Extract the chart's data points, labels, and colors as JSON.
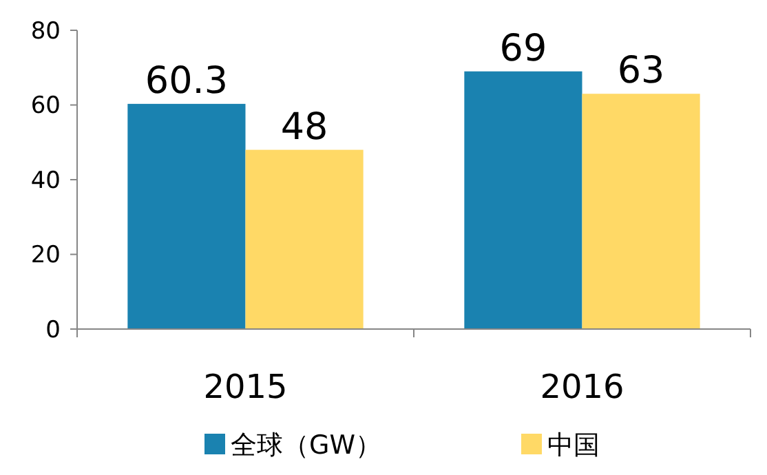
{
  "chart_data": {
    "type": "bar",
    "categories": [
      "2015",
      "2016"
    ],
    "series": [
      {
        "name": "全球（GW）",
        "color": "#1a82b0",
        "values": [
          60.3,
          69
        ]
      },
      {
        "name": "中国",
        "color": "#ffd966",
        "values": [
          48,
          63
        ]
      }
    ],
    "ylim": [
      0,
      80
    ],
    "yticks": [
      0,
      20,
      40,
      60,
      80
    ],
    "data_labels": true,
    "grid": false,
    "legend": "bottom"
  }
}
